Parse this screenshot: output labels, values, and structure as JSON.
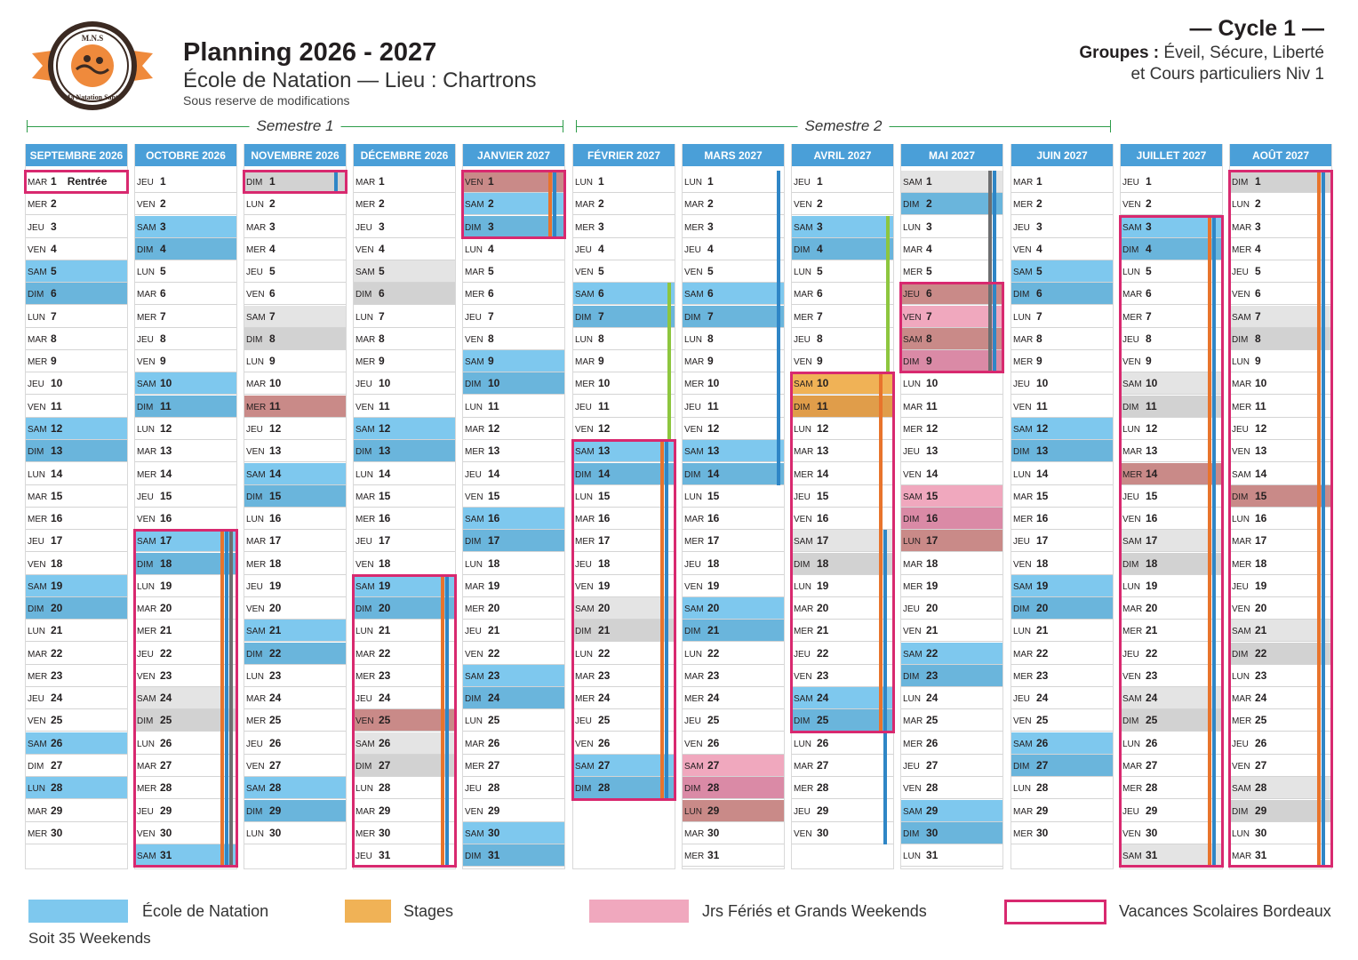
{
  "header": {
    "title": "Planning 2026 - 2027",
    "subtitle": "École de Natation — Lieu : Chartrons",
    "reserve": "Sous reserve de modifications",
    "cycle": "— Cycle 1 —",
    "groups_label": "Groupes :",
    "groups_line1": "Éveil, Sécure, Liberté",
    "groups_line2": "et Cours particuliers Niv 1"
  },
  "logo": {
    "top_text": "M.N.S",
    "ring_text": "Ma Natation Santé",
    "color": "#ef8a3c"
  },
  "semesters": [
    {
      "label": "Semestre 1"
    },
    {
      "label": "Semestre 2"
    }
  ],
  "months": [
    {
      "name": "SEPTEMBRE 2026",
      "start": 1,
      "days": 30,
      "extras": {
        "1": "Rentrée"
      },
      "school": [
        5,
        6,
        12,
        13,
        19,
        20,
        26,
        28
      ],
      "we": [],
      "ferie": [],
      "pink": [],
      "stage": []
    },
    {
      "name": "OCTOBRE 2026",
      "start": 3,
      "days": 31,
      "school": [
        3,
        4,
        10,
        11,
        17,
        18,
        31
      ],
      "we": [
        24,
        25
      ],
      "ferie": [],
      "pink": [],
      "stage": []
    },
    {
      "name": "NOVEMBRE 2026",
      "start": 6,
      "days": 30,
      "school": [
        14,
        15,
        21,
        22,
        28,
        29
      ],
      "we": [
        1,
        7,
        8
      ],
      "ferie": [
        11
      ],
      "pink": [],
      "stage": []
    },
    {
      "name": "DÉCEMBRE 2026",
      "start": 1,
      "days": 31,
      "school": [
        12,
        13,
        19,
        20
      ],
      "we": [
        5,
        6,
        26,
        27
      ],
      "ferie": [
        25
      ],
      "pink": [],
      "stage": []
    },
    {
      "name": "JANVIER 2027",
      "start": 4,
      "days": 31,
      "school": [
        2,
        3,
        9,
        10,
        16,
        17,
        23,
        24,
        30,
        31
      ],
      "we": [],
      "ferie": [
        1
      ],
      "pink": [],
      "stage": []
    },
    {
      "name": "FÉVRIER 2027",
      "start": 0,
      "days": 28,
      "school": [
        6,
        7,
        13,
        14,
        27,
        28
      ],
      "we": [
        20,
        21
      ],
      "ferie": [],
      "pink": [],
      "stage": []
    },
    {
      "name": "MARS 2027",
      "start": 0,
      "days": 31,
      "school": [
        6,
        7,
        13,
        14,
        20,
        21
      ],
      "we": [],
      "ferie": [
        29
      ],
      "pink": [
        27,
        28
      ],
      "stage": []
    },
    {
      "name": "AVRIL 2027",
      "start": 3,
      "days": 30,
      "school": [
        3,
        4,
        24,
        25
      ],
      "we": [
        17,
        18
      ],
      "ferie": [],
      "pink": [],
      "stage": [
        10,
        11
      ]
    },
    {
      "name": "MAI 2027",
      "start": 5,
      "days": 31,
      "school": [
        2,
        22,
        23,
        29,
        30
      ],
      "we": [
        1
      ],
      "ferie": [
        6,
        8,
        17
      ],
      "pink": [
        7,
        9,
        15,
        16
      ],
      "stage": []
    },
    {
      "name": "JUIN 2027",
      "start": 1,
      "days": 30,
      "school": [
        5,
        6,
        12,
        13,
        19,
        20,
        26,
        27
      ],
      "we": [],
      "ferie": [],
      "pink": [],
      "stage": []
    },
    {
      "name": "JUILLET 2027",
      "start": 3,
      "days": 31,
      "school": [
        3,
        4
      ],
      "we": [
        10,
        11,
        17,
        18,
        24,
        25,
        31
      ],
      "ferie": [
        14
      ],
      "pink": [],
      "stage": []
    },
    {
      "name": "AOÛT 2027",
      "start": 6,
      "days": 31,
      "school": [],
      "we": [
        1,
        7,
        8,
        21,
        22,
        28,
        29
      ],
      "ferie": [
        15
      ],
      "pink": [],
      "stage": []
    }
  ],
  "weekday_abbr": [
    "LUN",
    "MAR",
    "MER",
    "JEU",
    "VEN",
    "SAM",
    "DIM"
  ],
  "legend": [
    {
      "label": "École de Natation",
      "color": "#7ec8ee"
    },
    {
      "label": "Stages",
      "color": "#f0b256"
    },
    {
      "label": "Jrs Fériés et Grands Weekends",
      "color": "#f0a8be"
    },
    {
      "label": "Vacances Scolaires Bordeaux",
      "color": "#d8296f"
    }
  ],
  "weekends_note": "Soit 35 Weekends"
}
